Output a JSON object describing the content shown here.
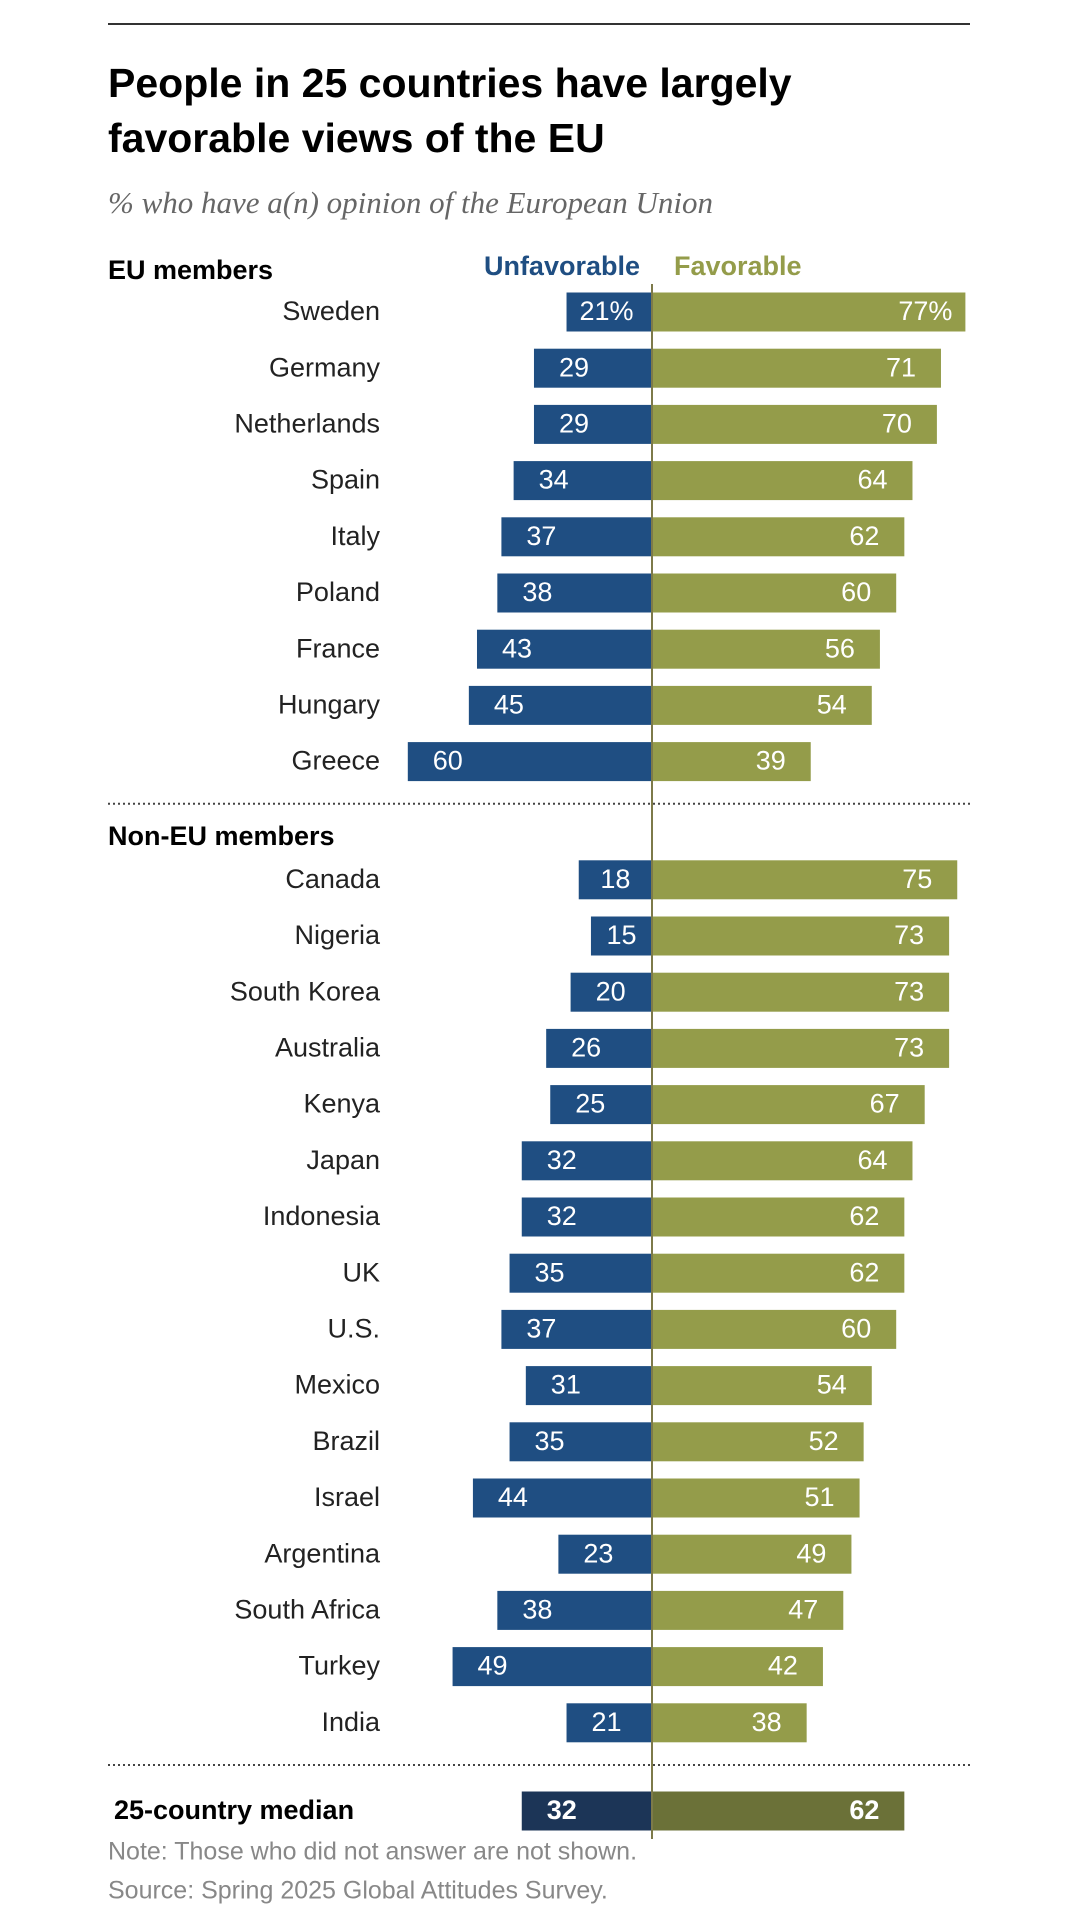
{
  "chart_data": {
    "type": "diverging_bar",
    "title": [
      "People in 25 countries have largely",
      "favorable views of the EU"
    ],
    "subtitle": "% who have a(n) opinion of the European Union",
    "series": [
      {
        "name": "Unfavorable",
        "color": "#1f4e82"
      },
      {
        "name": "Favorable",
        "color": "#949c4a"
      }
    ],
    "groups": [
      {
        "label": "EU members",
        "categories": [
          "Sweden",
          "Germany",
          "Netherlands",
          "Spain",
          "Italy",
          "Poland",
          "France",
          "Hungary",
          "Greece"
        ],
        "values": [
          [
            21,
            29,
            29,
            34,
            37,
            38,
            43,
            45,
            60
          ],
          [
            77,
            71,
            70,
            64,
            62,
            60,
            56,
            54,
            39
          ]
        ],
        "value_labels": [
          [
            "21%",
            "29",
            "29",
            "34",
            "37",
            "38",
            "43",
            "45",
            "60"
          ],
          [
            "77%",
            "71",
            "70",
            "64",
            "62",
            "60",
            "56",
            "54",
            "39"
          ]
        ]
      },
      {
        "label": "Non-EU members",
        "categories": [
          "Canada",
          "Nigeria",
          "South Korea",
          "Australia",
          "Kenya",
          "Japan",
          "Indonesia",
          "UK",
          "U.S.",
          "Mexico",
          "Brazil",
          "Israel",
          "Argentina",
          "South Africa",
          "Turkey",
          "India"
        ],
        "values": [
          [
            18,
            15,
            20,
            26,
            25,
            32,
            32,
            35,
            37,
            31,
            35,
            44,
            23,
            38,
            49,
            21
          ],
          [
            75,
            73,
            73,
            73,
            67,
            64,
            62,
            62,
            60,
            54,
            52,
            51,
            49,
            47,
            42,
            38
          ]
        ]
      }
    ],
    "median": {
      "label": "25-country median",
      "values": [
        32,
        62
      ],
      "colors": [
        "#1c3557",
        "#6b7138"
      ]
    },
    "note": "Note: Those who did not answer are not shown.",
    "source": "Source: Spring 2025 Global Attitudes Survey."
  }
}
